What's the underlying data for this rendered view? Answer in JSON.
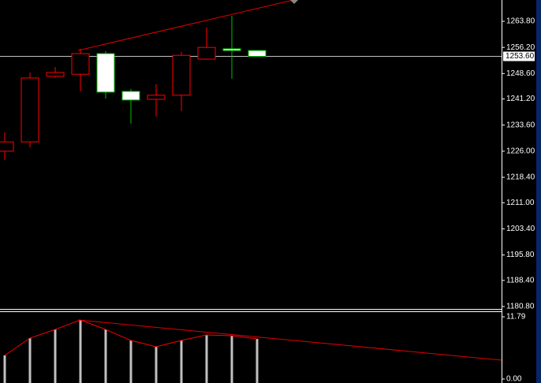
{
  "chart_data": [
    {
      "type": "candlestick",
      "open": [
        1226.0,
        1228.7,
        1247.8,
        1248.4,
        1254.4,
        1243.4,
        1241.1,
        1242.3,
        1252.8,
        1255.8,
        1255.3
      ],
      "high": [
        1231.5,
        1248.9,
        1250.5,
        1255.8,
        1255.1,
        1244.1,
        1245.5,
        1254.9,
        1262.0,
        1265.4,
        1255.3
      ],
      "low": [
        1223.4,
        1227.1,
        1247.3,
        1243.4,
        1241.3,
        1234.0,
        1236.1,
        1237.7,
        1252.6,
        1247.1,
        1253.6
      ],
      "close": [
        1228.7,
        1247.3,
        1248.9,
        1254.4,
        1243.2,
        1240.9,
        1242.3,
        1253.9,
        1256.2,
        1255.3,
        1253.6
      ],
      "up_color": "#ff0000",
      "down_color": "#00c000",
      "down_fill": "#ffffff",
      "ylim": [
        1180.1,
        1270.0
      ],
      "yticks": [
        {
          "value": 1263.8,
          "label": "1263.80"
        },
        {
          "value": 1256.2,
          "label": "1256.20"
        },
        {
          "value": 1248.6,
          "label": "1248.60"
        },
        {
          "value": 1241.2,
          "label": "1241.20"
        },
        {
          "value": 1233.6,
          "label": "1233.60"
        },
        {
          "value": 1226.0,
          "label": "1226.00"
        },
        {
          "value": 1218.4,
          "label": "1218.40"
        },
        {
          "value": 1211.0,
          "label": "1211.00"
        },
        {
          "value": 1203.4,
          "label": "1203.40"
        },
        {
          "value": 1195.8,
          "label": "1195.80"
        },
        {
          "value": 1188.4,
          "label": "1188.40"
        },
        {
          "value": 1180.8,
          "label": "1180.80"
        }
      ],
      "current_price": {
        "value": 1253.6,
        "label": "1253.60"
      }
    },
    {
      "type": "bar",
      "values": [
        4.48,
        7.76,
        9.4,
        11.19,
        9.4,
        7.31,
        6.12,
        7.31,
        8.36,
        8.21,
        7.61
      ],
      "color": "#c0c0c0",
      "line_color": "#ff0000",
      "ylim": [
        -0.75,
        12.69
      ],
      "yticks": [
        11.79,
        {
          "value": 0,
          "label": "0.00"
        }
      ]
    }
  ]
}
